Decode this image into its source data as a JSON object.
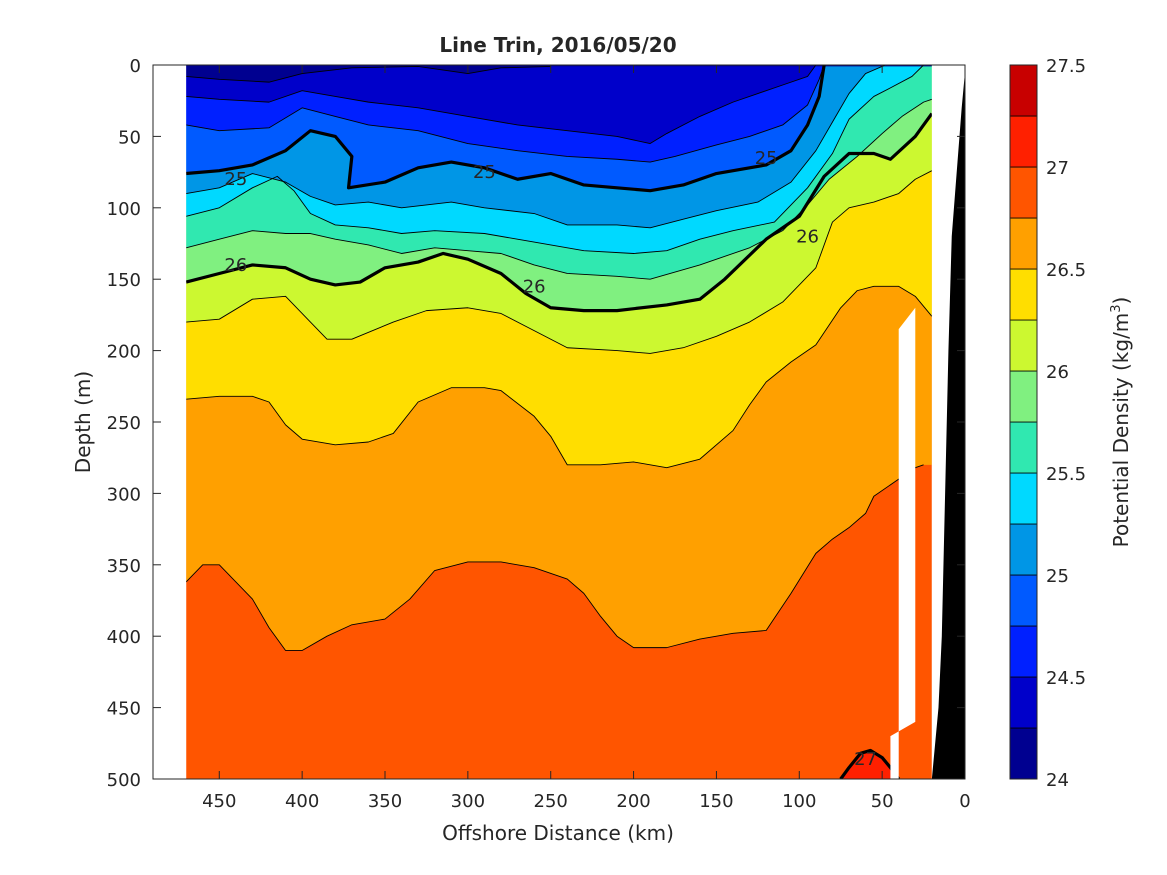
{
  "chart_data": {
    "type": "contour",
    "title": "Line Trin, 2016/05/20",
    "xlabel": "Offshore Distance (km)",
    "ylabel": "Depth (m)",
    "colorbar_label": "Potential Density (kg/m³)",
    "x_reversed": true,
    "y_reversed": true,
    "xlim": [
      0,
      490
    ],
    "ylim": [
      0,
      500
    ],
    "x_ticks": [
      450,
      400,
      350,
      300,
      250,
      200,
      150,
      100,
      50,
      0
    ],
    "y_ticks": [
      0,
      50,
      100,
      150,
      200,
      250,
      300,
      350,
      400,
      450,
      500
    ],
    "clim": [
      24,
      27.5
    ],
    "colorbar_ticks": [
      24,
      24.5,
      25,
      25.5,
      26,
      26.5,
      27,
      27.5
    ],
    "levels": [
      24,
      24.25,
      24.5,
      24.75,
      25,
      25.25,
      25.5,
      25.75,
      26,
      26.25,
      26.5,
      26.75,
      27,
      27.25,
      27.5
    ],
    "level_colors": [
      "#000090",
      "#0000CA",
      "#0020FF",
      "#005AFF",
      "#0096E6",
      "#00D9FF",
      "#30E8B0",
      "#80F080",
      "#CCF830",
      "#FFDE00",
      "#FFA000",
      "#FF5500",
      "#FF2000",
      "#C80000"
    ],
    "bold_contours": [
      25,
      26,
      27
    ],
    "contour_labels": [
      "25",
      "25",
      "25",
      "26",
      "26",
      "26",
      "27"
    ],
    "data_extent_x": [
      20,
      470
    ],
    "bathymetry_color": "#000000",
    "contours": [
      {
        "level": 24.25,
        "points": [
          [
            470,
            8
          ],
          [
            450,
            10
          ],
          [
            420,
            12
          ],
          [
            400,
            6
          ],
          [
            370,
            2
          ],
          [
            330,
            1
          ],
          [
            300,
            6
          ],
          [
            280,
            2
          ],
          [
            250,
            1
          ]
        ]
      },
      {
        "level": 24.5,
        "points": [
          [
            470,
            22
          ],
          [
            450,
            24
          ],
          [
            420,
            26
          ],
          [
            400,
            18
          ],
          [
            380,
            22
          ],
          [
            360,
            26
          ],
          [
            330,
            30
          ],
          [
            300,
            36
          ],
          [
            270,
            42
          ],
          [
            240,
            46
          ],
          [
            210,
            50
          ],
          [
            190,
            55
          ],
          [
            180,
            48
          ],
          [
            160,
            36
          ],
          [
            140,
            26
          ],
          [
            125,
            20
          ],
          [
            110,
            14
          ],
          [
            95,
            8
          ],
          [
            90,
            0
          ]
        ]
      },
      {
        "level": 24.75,
        "points": [
          [
            470,
            42
          ],
          [
            450,
            46
          ],
          [
            420,
            44
          ],
          [
            400,
            30
          ],
          [
            380,
            36
          ],
          [
            360,
            42
          ],
          [
            330,
            46
          ],
          [
            300,
            55
          ],
          [
            270,
            60
          ],
          [
            240,
            64
          ],
          [
            210,
            66
          ],
          [
            190,
            68
          ],
          [
            175,
            64
          ],
          [
            150,
            56
          ],
          [
            130,
            50
          ],
          [
            110,
            42
          ],
          [
            95,
            28
          ],
          [
            88,
            10
          ],
          [
            85,
            0
          ]
        ]
      },
      {
        "level": 25,
        "points": [
          [
            470,
            76
          ],
          [
            450,
            74
          ],
          [
            430,
            70
          ],
          [
            410,
            60
          ],
          [
            395,
            46
          ],
          [
            380,
            50
          ],
          [
            370,
            64
          ],
          [
            372,
            86
          ],
          [
            350,
            82
          ],
          [
            330,
            72
          ],
          [
            310,
            68
          ],
          [
            290,
            72
          ],
          [
            270,
            80
          ],
          [
            250,
            76
          ],
          [
            230,
            84
          ],
          [
            210,
            86
          ],
          [
            190,
            88
          ],
          [
            170,
            84
          ],
          [
            150,
            76
          ],
          [
            120,
            70
          ],
          [
            105,
            60
          ],
          [
            95,
            42
          ],
          [
            88,
            22
          ],
          [
            85,
            0
          ]
        ]
      },
      {
        "level": 25.25,
        "points": [
          [
            470,
            90
          ],
          [
            450,
            86
          ],
          [
            430,
            76
          ],
          [
            410,
            82
          ],
          [
            395,
            92
          ],
          [
            380,
            98
          ],
          [
            360,
            96
          ],
          [
            340,
            100
          ],
          [
            310,
            96
          ],
          [
            290,
            100
          ],
          [
            260,
            104
          ],
          [
            240,
            112
          ],
          [
            210,
            112
          ],
          [
            190,
            114
          ],
          [
            170,
            108
          ],
          [
            150,
            102
          ],
          [
            125,
            96
          ],
          [
            105,
            82
          ],
          [
            90,
            60
          ],
          [
            78,
            36
          ],
          [
            70,
            20
          ],
          [
            60,
            6
          ],
          [
            48,
            0
          ]
        ]
      },
      {
        "level": 25.5,
        "points": [
          [
            470,
            106
          ],
          [
            450,
            100
          ],
          [
            430,
            86
          ],
          [
            415,
            78
          ],
          [
            405,
            88
          ],
          [
            395,
            104
          ],
          [
            380,
            112
          ],
          [
            360,
            114
          ],
          [
            340,
            118
          ],
          [
            320,
            116
          ],
          [
            290,
            118
          ],
          [
            260,
            124
          ],
          [
            230,
            130
          ],
          [
            200,
            132
          ],
          [
            180,
            130
          ],
          [
            160,
            122
          ],
          [
            140,
            116
          ],
          [
            115,
            110
          ],
          [
            95,
            86
          ],
          [
            80,
            62
          ],
          [
            70,
            38
          ],
          [
            55,
            22
          ],
          [
            45,
            16
          ],
          [
            32,
            8
          ],
          [
            25,
            0
          ]
        ]
      },
      {
        "level": 25.75,
        "points": [
          [
            470,
            128
          ],
          [
            450,
            122
          ],
          [
            430,
            116
          ],
          [
            410,
            118
          ],
          [
            395,
            118
          ],
          [
            380,
            122
          ],
          [
            360,
            126
          ],
          [
            340,
            132
          ],
          [
            320,
            128
          ],
          [
            300,
            130
          ],
          [
            280,
            132
          ],
          [
            260,
            140
          ],
          [
            240,
            146
          ],
          [
            210,
            148
          ],
          [
            190,
            150
          ],
          [
            160,
            140
          ],
          [
            130,
            128
          ],
          [
            110,
            116
          ],
          [
            95,
            98
          ],
          [
            82,
            80
          ],
          [
            65,
            64
          ],
          [
            50,
            48
          ],
          [
            38,
            36
          ],
          [
            25,
            26
          ],
          [
            20,
            24
          ]
        ]
      },
      {
        "level": 26,
        "points": [
          [
            470,
            152
          ],
          [
            450,
            146
          ],
          [
            430,
            140
          ],
          [
            410,
            142
          ],
          [
            395,
            150
          ],
          [
            380,
            154
          ],
          [
            365,
            152
          ],
          [
            350,
            142
          ],
          [
            330,
            138
          ],
          [
            315,
            132
          ],
          [
            300,
            136
          ],
          [
            280,
            146
          ],
          [
            265,
            160
          ],
          [
            250,
            170
          ],
          [
            230,
            172
          ],
          [
            210,
            172
          ],
          [
            180,
            168
          ],
          [
            160,
            164
          ],
          [
            145,
            150
          ],
          [
            120,
            122
          ],
          [
            100,
            106
          ],
          [
            85,
            78
          ],
          [
            70,
            62
          ],
          [
            55,
            62
          ],
          [
            45,
            66
          ],
          [
            30,
            50
          ],
          [
            20,
            34
          ]
        ]
      },
      {
        "level": 26.25,
        "points": [
          [
            470,
            180
          ],
          [
            450,
            178
          ],
          [
            430,
            164
          ],
          [
            410,
            162
          ],
          [
            395,
            180
          ],
          [
            385,
            192
          ],
          [
            370,
            192
          ],
          [
            345,
            180
          ],
          [
            325,
            172
          ],
          [
            300,
            170
          ],
          [
            280,
            174
          ],
          [
            260,
            186
          ],
          [
            240,
            198
          ],
          [
            210,
            200
          ],
          [
            190,
            202
          ],
          [
            170,
            198
          ],
          [
            150,
            190
          ],
          [
            130,
            180
          ],
          [
            110,
            166
          ],
          [
            90,
            142
          ],
          [
            80,
            110
          ],
          [
            70,
            100
          ],
          [
            55,
            96
          ],
          [
            40,
            90
          ],
          [
            30,
            80
          ],
          [
            20,
            74
          ]
        ]
      },
      {
        "level": 26.5,
        "points": [
          [
            470,
            234
          ],
          [
            450,
            232
          ],
          [
            430,
            232
          ],
          [
            420,
            236
          ],
          [
            410,
            252
          ],
          [
            400,
            262
          ],
          [
            380,
            266
          ],
          [
            360,
            264
          ],
          [
            345,
            258
          ],
          [
            330,
            236
          ],
          [
            310,
            226
          ],
          [
            290,
            226
          ],
          [
            280,
            228
          ],
          [
            260,
            246
          ],
          [
            250,
            260
          ],
          [
            240,
            280
          ],
          [
            220,
            280
          ],
          [
            200,
            278
          ],
          [
            180,
            282
          ],
          [
            160,
            276
          ],
          [
            140,
            256
          ],
          [
            130,
            238
          ],
          [
            120,
            222
          ],
          [
            105,
            208
          ],
          [
            90,
            196
          ],
          [
            75,
            170
          ],
          [
            65,
            158
          ],
          [
            55,
            155
          ],
          [
            40,
            155
          ],
          [
            30,
            162
          ],
          [
            20,
            176
          ]
        ]
      },
      {
        "level": 26.75,
        "points": [
          [
            470,
            362
          ],
          [
            460,
            350
          ],
          [
            450,
            350
          ],
          [
            440,
            362
          ],
          [
            430,
            374
          ],
          [
            420,
            394
          ],
          [
            410,
            410
          ],
          [
            400,
            410
          ],
          [
            385,
            400
          ],
          [
            370,
            392
          ],
          [
            350,
            388
          ],
          [
            335,
            374
          ],
          [
            320,
            354
          ],
          [
            300,
            348
          ],
          [
            280,
            348
          ],
          [
            260,
            352
          ],
          [
            240,
            360
          ],
          [
            230,
            370
          ],
          [
            220,
            386
          ],
          [
            210,
            400
          ],
          [
            200,
            408
          ],
          [
            180,
            408
          ],
          [
            160,
            402
          ],
          [
            140,
            398
          ],
          [
            120,
            396
          ],
          [
            105,
            370
          ],
          [
            90,
            342
          ],
          [
            80,
            332
          ],
          [
            70,
            324
          ],
          [
            60,
            314
          ],
          [
            55,
            302
          ],
          [
            40,
            290
          ],
          [
            30,
            282
          ],
          [
            25,
            280
          ]
        ]
      },
      {
        "level": 27,
        "points": [
          [
            75,
            500
          ],
          [
            70,
            492
          ],
          [
            63,
            482
          ],
          [
            57,
            480
          ],
          [
            50,
            485
          ],
          [
            45,
            492
          ],
          [
            40,
            500
          ]
        ]
      }
    ],
    "bottom_profile": [
      [
        0,
        5
      ],
      [
        2,
        30
      ],
      [
        4,
        60
      ],
      [
        6,
        90
      ],
      [
        8,
        120
      ],
      [
        10,
        200
      ],
      [
        12,
        300
      ],
      [
        14,
        400
      ],
      [
        16,
        450
      ],
      [
        20,
        500
      ]
    ]
  }
}
